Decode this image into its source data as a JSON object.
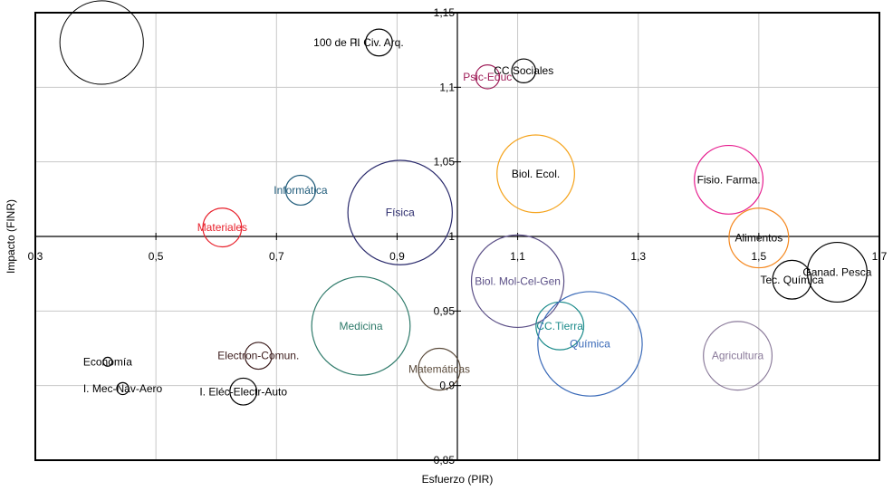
{
  "chart_data": {
    "type": "scatter",
    "variant": "bubble",
    "title": "",
    "xlabel": "Esfuerzo (PIR)",
    "ylabel": "Impacto (FINR)",
    "xlim": [
      0.3,
      1.7
    ],
    "ylim": [
      0.85,
      1.15
    ],
    "x_ticks": [
      "0,3",
      "0,5",
      "0,7",
      "0,9",
      "1,1",
      "1,3",
      "1,5",
      "1,7"
    ],
    "y_ticks": [
      "0,85",
      "0,9",
      "0,95",
      "1",
      "1,05",
      "1,1",
      "1,15"
    ],
    "x_tick_values": [
      0.3,
      0.5,
      0.7,
      0.9,
      1.1,
      1.3,
      1.5,
      1.7
    ],
    "y_tick_values": [
      0.85,
      0.9,
      0.95,
      1.0,
      1.05,
      1.1,
      1.15
    ],
    "axis_cross": {
      "x": 1.0,
      "y": 1.0
    },
    "grid": true,
    "legend": "none",
    "size_reference_label": "100 de PI",
    "size_reference": {
      "x": 0.41,
      "y": 1.13,
      "r": 0.028
    },
    "points": [
      {
        "label": "I. Civ. Arq.",
        "x": 0.87,
        "y": 1.13,
        "r": 0.009,
        "color": "#000000",
        "label_color": "#000000"
      },
      {
        "label": "CC Sociales",
        "x": 1.11,
        "y": 1.111,
        "r": 0.008,
        "color": "#000000",
        "label_color": "#000000"
      },
      {
        "label": "Psic-Educ",
        "x": 1.05,
        "y": 1.107,
        "r": 0.008,
        "color": "#a0205a",
        "label_color": "#a0205a"
      },
      {
        "label": "Biol. Ecol.",
        "x": 1.13,
        "y": 1.042,
        "r": 0.026,
        "color": "#f5a31b",
        "label_color": "#000000"
      },
      {
        "label": "Fisio. Farma.",
        "x": 1.45,
        "y": 1.038,
        "r": 0.023,
        "color": "#e6188c",
        "label_color": "#000000"
      },
      {
        "label": "Informática",
        "x": 0.74,
        "y": 1.031,
        "r": 0.01,
        "color": "#1f5b7a",
        "label_color": "#1f5b7a"
      },
      {
        "label": "Física",
        "x": 0.905,
        "y": 1.016,
        "r": 0.035,
        "color": "#2a2a6c",
        "label_color": "#2a2a6c"
      },
      {
        "label": "Materiales",
        "x": 0.61,
        "y": 1.006,
        "r": 0.013,
        "color": "#e8202b",
        "label_color": "#e8202b"
      },
      {
        "label": "Alimentos",
        "x": 1.5,
        "y": 0.999,
        "r": 0.02,
        "color": "#f5881f",
        "label_color": "#000000"
      },
      {
        "label": "Tec. Química",
        "x": 1.555,
        "y": 0.971,
        "r": 0.013,
        "color": "#000000",
        "label_color": "#000000"
      },
      {
        "label": "Ganad. Pesca",
        "x": 1.63,
        "y": 0.976,
        "r": 0.02,
        "color": "#000000",
        "label_color": "#000000"
      },
      {
        "label": "Biol. Mol-Cel-Gen",
        "x": 1.1,
        "y": 0.97,
        "r": 0.031,
        "color": "#5a4e86",
        "label_color": "#5a4e86"
      },
      {
        "label": "Medicina",
        "x": 0.84,
        "y": 0.94,
        "r": 0.033,
        "color": "#2e7a6a",
        "label_color": "#2e7a6a"
      },
      {
        "label": "CC.Tierra",
        "x": 1.17,
        "y": 0.94,
        "r": 0.016,
        "color": "#1a8a8a",
        "label_color": "#1a8a8a"
      },
      {
        "label": "Química",
        "x": 1.22,
        "y": 0.928,
        "r": 0.035,
        "color": "#3a6ab8",
        "label_color": "#3a6ab8"
      },
      {
        "label": "Agricultura",
        "x": 1.465,
        "y": 0.92,
        "r": 0.023,
        "color": "#8a7a9a",
        "label_color": "#8a7a9a"
      },
      {
        "label": "Matemáticas",
        "x": 0.97,
        "y": 0.911,
        "r": 0.014,
        "color": "#5a4a3a",
        "label_color": "#5a4a3a"
      },
      {
        "label": "Electron-Comun.",
        "x": 0.67,
        "y": 0.92,
        "r": 0.009,
        "color": "#3a1a1a",
        "label_color": "#3a1a1a"
      },
      {
        "label": "Economía",
        "x": 0.42,
        "y": 0.916,
        "r": 0.003,
        "color": "#000000",
        "label_color": "#000000"
      },
      {
        "label": "I. Mec-Nav-Aero",
        "x": 0.445,
        "y": 0.898,
        "r": 0.004,
        "color": "#000000",
        "label_color": "#000000"
      },
      {
        "label": "I. Eléc-Electr-Auto",
        "x": 0.645,
        "y": 0.896,
        "r": 0.009,
        "color": "#000000",
        "label_color": "#000000"
      }
    ]
  }
}
